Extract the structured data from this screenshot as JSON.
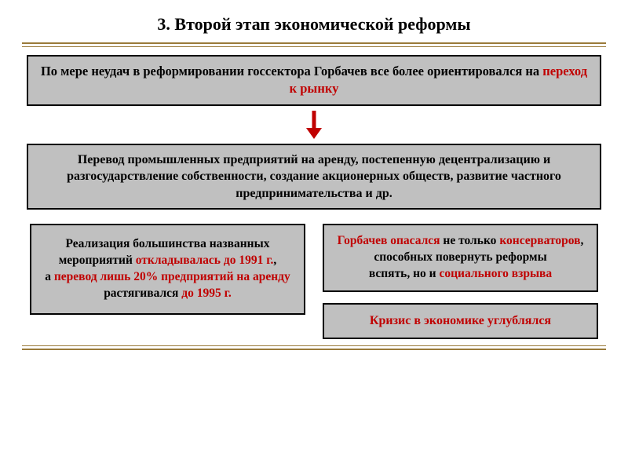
{
  "title": "3. Второй этап экономической реформы",
  "divider_color": "#9a7a3a",
  "box_bg": "#c0c0c0",
  "box_border": "#000000",
  "highlight_color": "#c00000",
  "text_color": "#000000",
  "arrow": {
    "color": "#c00000",
    "stroke_width": 5,
    "head_width": 20,
    "head_height": 14,
    "shaft_height": 24
  },
  "box1": {
    "parts": [
      {
        "t": "По мере неудач в реформировании госсектора Горбачев все более ориентировался на ",
        "hl": false
      },
      {
        "t": "переход к рынку",
        "hl": true
      }
    ]
  },
  "box2": {
    "text": "Перевод промышленных предприятий на аренду, постепенную децентрализацию и разгосударствление собственности, создание акционерных обществ, развитие частного предпринимательства и др."
  },
  "box_left": {
    "parts": [
      {
        "t": "Реализация большинства названных мероприятий ",
        "hl": false
      },
      {
        "t": "откладывалась до 1991 г.",
        "hl": true
      },
      {
        "t": ",",
        "hl": false
      },
      {
        "t": " а ",
        "hl": false,
        "br_before": true
      },
      {
        "t": "перевод лишь 20% предприятий на аренду",
        "hl": true
      },
      {
        "t": " растягивался ",
        "hl": false
      },
      {
        "t": "до 1995 г.",
        "hl": true
      }
    ]
  },
  "box_right_top": {
    "parts": [
      {
        "t": "Горбачев опасался",
        "hl": true
      },
      {
        "t": " не только ",
        "hl": false
      },
      {
        "t": "консерваторов",
        "hl": true
      },
      {
        "t": ", способных повернуть реформы",
        "hl": false
      },
      {
        "t": " вспять, но и ",
        "hl": false,
        "br_before": true
      },
      {
        "t": "социального взрыва",
        "hl": true
      }
    ]
  },
  "box_right_bottom": {
    "text": "Кризис в экономике углублялся"
  }
}
